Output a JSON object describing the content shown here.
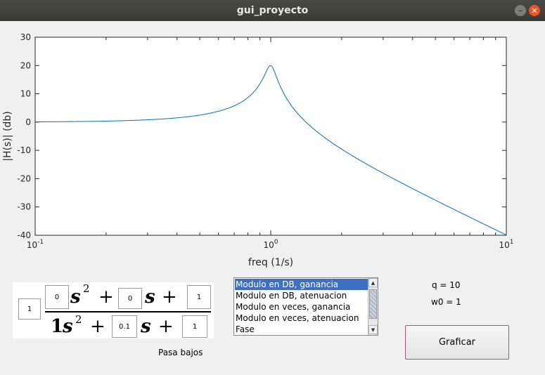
{
  "window": {
    "title": "gui_proyecto"
  },
  "chart_data": {
    "type": "line",
    "xscale": "log",
    "xlim": [
      0.1,
      10
    ],
    "ylim": [
      -40,
      30
    ],
    "xlabel": "freq (1/s)",
    "ylabel": "|H(s)| (db)",
    "yticks": [
      "30",
      "20",
      "10",
      "0",
      "-10",
      "-20",
      "-30",
      "-40"
    ],
    "xticks": [
      {
        "base": "10",
        "exp": "-1"
      },
      {
        "base": "10",
        "exp": "0"
      },
      {
        "base": "10",
        "exp": "1"
      }
    ],
    "series": [
      {
        "q": 10,
        "w0": 1,
        "color": "#0072bd"
      }
    ]
  },
  "formula": {
    "gain": "1",
    "num_a": "0",
    "num_b": "0",
    "num_c": "1",
    "den_a_text": "1",
    "den_b": "0.1",
    "den_c": "1",
    "var": "s",
    "power": "2",
    "plus": "+"
  },
  "filter_type": "Pasa bajos",
  "plot_list": {
    "items": [
      "Modulo en DB, ganancia",
      "Modulo en DB, atenuacion",
      "Modulo en veces, ganancia",
      "Modulo en veces, atenuacion",
      "Fase"
    ],
    "selected_index": 0
  },
  "params": {
    "q": "q = 10",
    "w0": "w0 = 1"
  },
  "buttons": {
    "plot": "Graficar"
  }
}
